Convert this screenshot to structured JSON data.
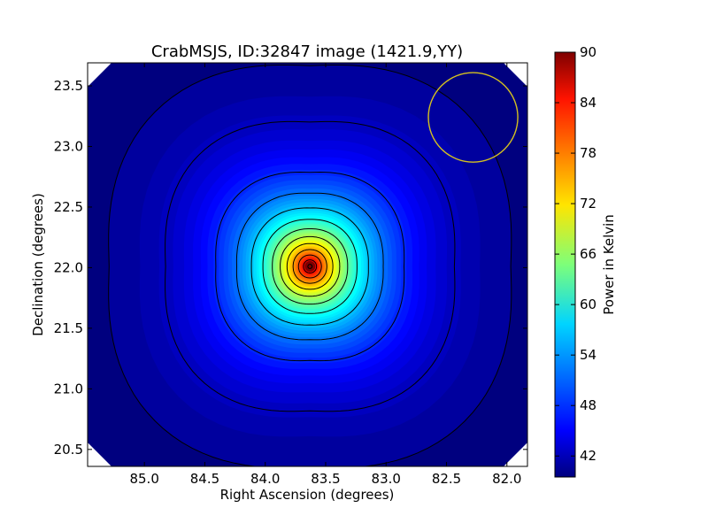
{
  "chart_data": {
    "type": "heatmap",
    "title": "CrabMSJS, ID:32847 image (1421.9,YY)",
    "xlabel": "Right Ascension (degrees)",
    "ylabel": "Declination (degrees)",
    "xlim": [
      85.47,
      81.83
    ],
    "ylim": [
      20.36,
      23.69
    ],
    "xticks": [
      85.0,
      84.5,
      84.0,
      83.5,
      83.0,
      82.5,
      82.0
    ],
    "xtick_labels": [
      "85.0",
      "84.5",
      "84.0",
      "83.5",
      "83.0",
      "82.5",
      "82.0"
    ],
    "yticks": [
      20.5,
      21.0,
      21.5,
      22.0,
      22.5,
      23.0,
      23.5
    ],
    "ytick_labels": [
      "20.5",
      "21.0",
      "21.5",
      "22.0",
      "22.5",
      "23.0",
      "23.5"
    ],
    "colorbar": {
      "label": "Power in Kelvin",
      "range": [
        39.5,
        90
      ],
      "ticks": [
        42,
        48,
        54,
        60,
        66,
        72,
        78,
        84,
        90
      ],
      "tick_labels": [
        "42",
        "48",
        "54",
        "60",
        "66",
        "72",
        "78",
        "84",
        "90"
      ],
      "colormap": "jet"
    },
    "source": {
      "ra": 83.63,
      "dec": 22.01,
      "peak_kelvin": 90,
      "background_kelvin": 40
    },
    "beam_circle": {
      "ra_center": 82.28,
      "dec_center": 23.24,
      "radius_deg": 0.37,
      "color": "#d4c020"
    },
    "contour_levels": [
      41,
      43,
      48,
      52,
      56,
      60,
      64,
      68,
      72,
      76,
      80,
      84,
      88
    ],
    "grid": false
  }
}
